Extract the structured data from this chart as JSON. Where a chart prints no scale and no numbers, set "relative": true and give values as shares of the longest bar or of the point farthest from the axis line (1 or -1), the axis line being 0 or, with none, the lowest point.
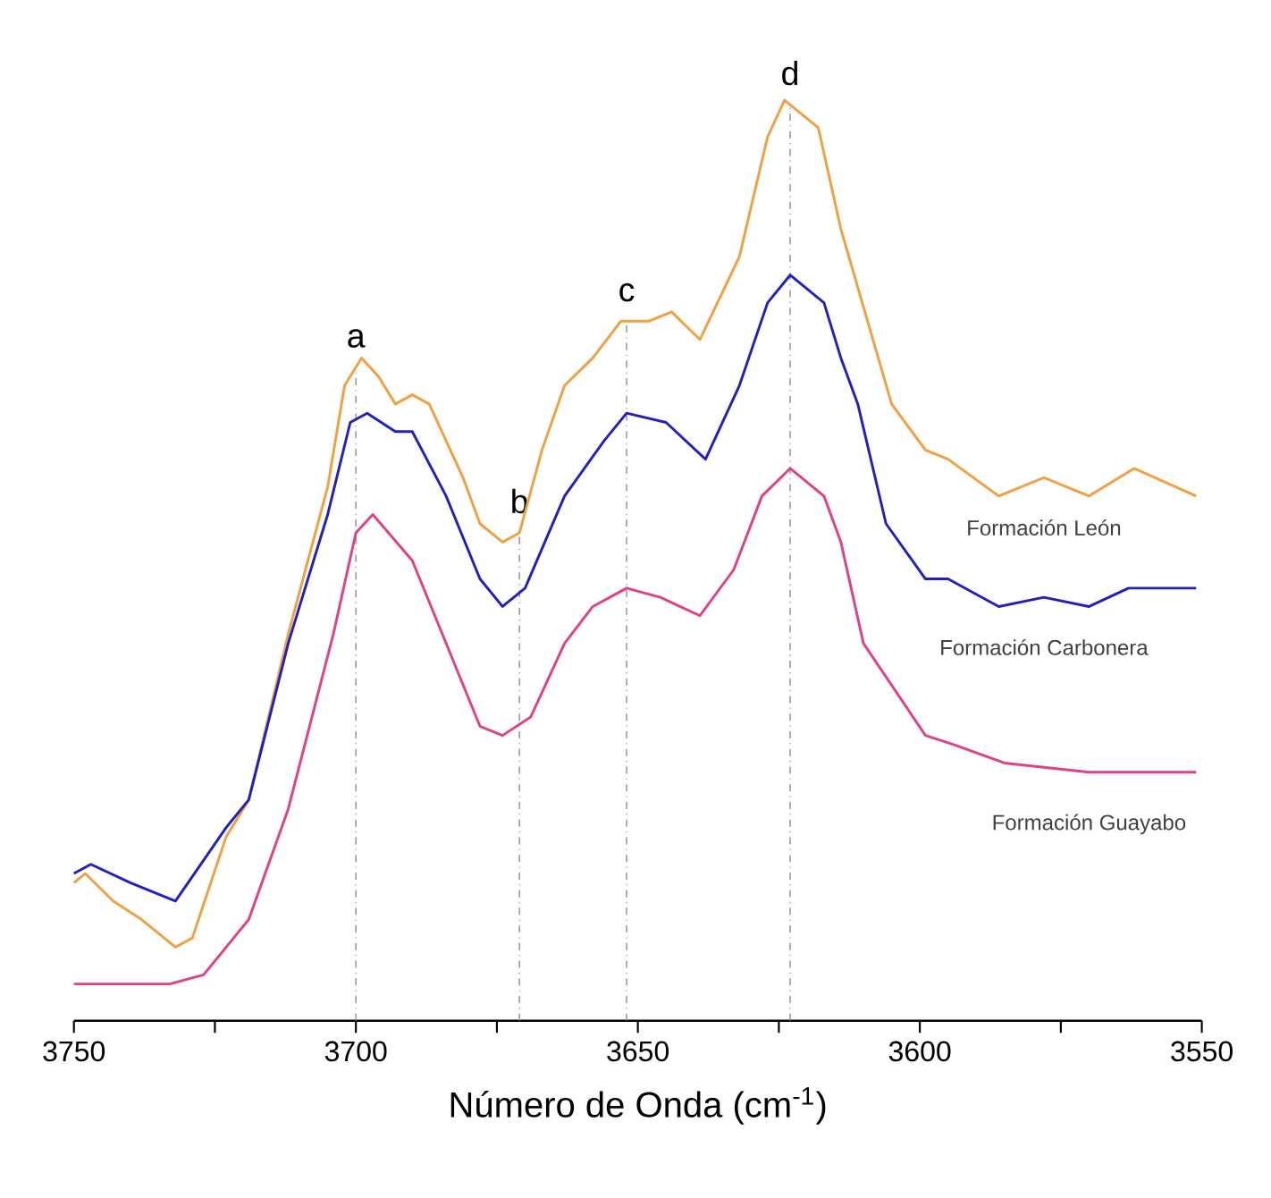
{
  "chart_data": {
    "type": "line",
    "relative": true,
    "xlabel": "Número de Onda (cm$^{-1}$)",
    "xlim": [
      3750,
      3550
    ],
    "xticks": [
      3750,
      {
        "value": 3725,
        "label": null
      },
      3700,
      {
        "value": 3675,
        "label": null
      },
      3650,
      {
        "value": 3625,
        "label": null
      },
      3600,
      {
        "value": 3575,
        "label": null
      },
      3550
    ],
    "grid": false,
    "marker": "none",
    "line_style": "solid",
    "ref_lines": [
      {
        "axis": "x",
        "value": 3700,
        "label": "a",
        "color": "#888888",
        "line_style": "dashdot"
      },
      {
        "axis": "x",
        "value": 3671,
        "label": "b",
        "color": "#888888",
        "line_style": "dashdot"
      },
      {
        "axis": "x",
        "value": 3652,
        "label": "c",
        "color": "#888888",
        "line_style": "dashdot"
      },
      {
        "axis": "x",
        "value": 3623,
        "label": "d",
        "color": "#888888",
        "line_style": "dashdot"
      }
    ],
    "series": [
      {
        "name": "Formación León",
        "color": "#f0a040",
        "x": [
          3750,
          3748,
          3743,
          3738,
          3732,
          3729,
          3723,
          3719,
          3712,
          3705,
          3702,
          3699,
          3696,
          3693,
          3690,
          3687,
          3681,
          3678,
          3674,
          3671,
          3667,
          3663,
          3658,
          3653,
          3648,
          3644,
          3639,
          3632,
          3627,
          3624,
          3618,
          3614,
          3605,
          3599,
          3595,
          3586,
          3578,
          3570,
          3562,
          3551
        ],
        "values": [
          0.15,
          0.16,
          0.13,
          0.11,
          0.08,
          0.09,
          0.2,
          0.24,
          0.42,
          0.58,
          0.69,
          0.72,
          0.7,
          0.67,
          0.68,
          0.67,
          0.59,
          0.54,
          0.52,
          0.53,
          0.62,
          0.69,
          0.72,
          0.76,
          0.76,
          0.77,
          0.74,
          0.83,
          0.96,
          1.0,
          0.97,
          0.86,
          0.67,
          0.62,
          0.61,
          0.57,
          0.59,
          0.57,
          0.6,
          0.57
        ]
      },
      {
        "name": "Formación Carbonera",
        "color": "#2020c0",
        "x": [
          3750,
          3747,
          3740,
          3732,
          3723,
          3719,
          3712,
          3705,
          3701,
          3698,
          3693,
          3690,
          3684,
          3678,
          3674,
          3670,
          3663,
          3656,
          3652,
          3645,
          3638,
          3632,
          3627,
          3623,
          3617,
          3614,
          3611,
          3606,
          3599,
          3595,
          3586,
          3578,
          3570,
          3563,
          3551
        ],
        "values": [
          0.16,
          0.17,
          0.15,
          0.13,
          0.21,
          0.24,
          0.41,
          0.55,
          0.65,
          0.66,
          0.64,
          0.64,
          0.57,
          0.48,
          0.45,
          0.47,
          0.57,
          0.63,
          0.66,
          0.65,
          0.61,
          0.69,
          0.78,
          0.81,
          0.78,
          0.72,
          0.67,
          0.54,
          0.48,
          0.48,
          0.45,
          0.46,
          0.45,
          0.47,
          0.47
        ]
      },
      {
        "name": "Formación Guayabo",
        "color": "#e0408a",
        "x": [
          3750,
          3743,
          3733,
          3727,
          3719,
          3712,
          3704,
          3700,
          3697,
          3690,
          3684,
          3678,
          3674,
          3669,
          3663,
          3658,
          3652,
          3646,
          3639,
          3633,
          3628,
          3623,
          3617,
          3614,
          3610,
          3599,
          3594,
          3585,
          3570,
          3563,
          3551
        ],
        "values": [
          0.04,
          0.04,
          0.04,
          0.05,
          0.11,
          0.23,
          0.42,
          0.53,
          0.55,
          0.5,
          0.41,
          0.32,
          0.31,
          0.33,
          0.41,
          0.45,
          0.47,
          0.46,
          0.44,
          0.49,
          0.57,
          0.6,
          0.57,
          0.52,
          0.41,
          0.31,
          0.3,
          0.28,
          0.27,
          0.27,
          0.27
        ]
      }
    ]
  }
}
